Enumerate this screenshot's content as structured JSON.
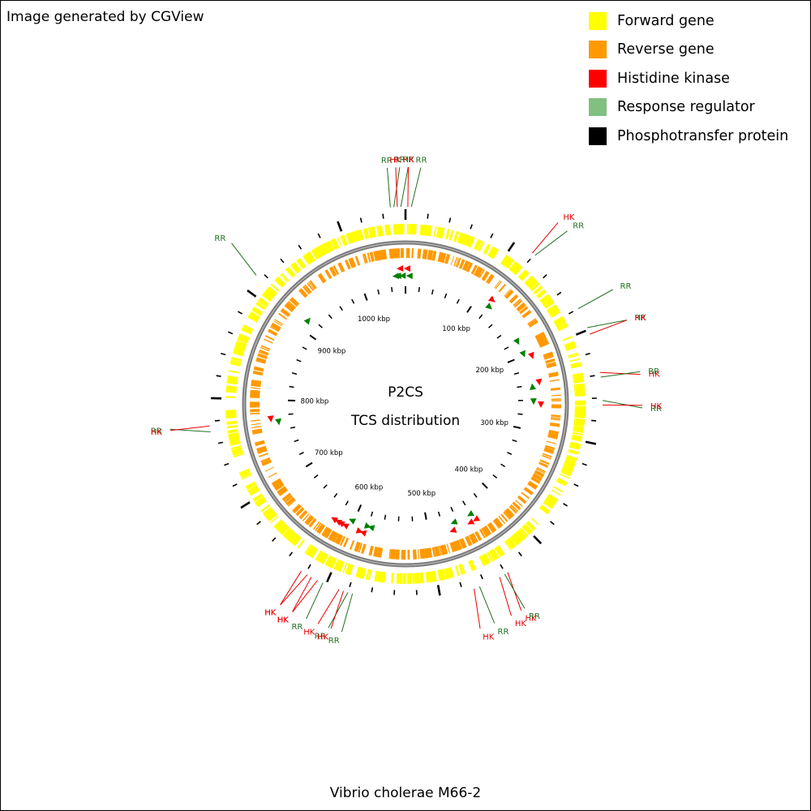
{
  "credit": "Image generated by CGView",
  "title_line1": "P2CS",
  "title_line2": "TCS distribution",
  "genome_name": "Vibrio cholerae M66-2",
  "legend": [
    {
      "label": "Forward gene",
      "color": "#ffff00"
    },
    {
      "label": "Reverse gene",
      "color": "#ff9900"
    },
    {
      "label": "Histidine kinase",
      "color": "#ff0000"
    },
    {
      "label": "Response regulator",
      "color": "#80c080"
    },
    {
      "label": "Phosphotransfer protein",
      "color": "#000000"
    }
  ],
  "colors": {
    "forward": "#ffff00",
    "reverse": "#ff9900",
    "hk": "#ff0000",
    "hk_label": "#e80000",
    "rr_marker": "#008000",
    "rr_label": "#207020",
    "backbone": "#808080",
    "tick": "#000000"
  },
  "genome_length_kbp": 1060,
  "ruler": {
    "tick_labels": [
      {
        "kbp": 100,
        "text": "100 kbp"
      },
      {
        "kbp": 200,
        "text": "200 kbp"
      },
      {
        "kbp": 300,
        "text": "300 kbp"
      },
      {
        "kbp": 400,
        "text": "400 kbp"
      },
      {
        "kbp": 500,
        "text": "500 kbp"
      },
      {
        "kbp": 600,
        "text": "600 kbp"
      },
      {
        "kbp": 700,
        "text": "700 kbp"
      },
      {
        "kbp": 800,
        "text": "800 kbp"
      },
      {
        "kbp": 900,
        "text": "900 kbp"
      },
      {
        "kbp": 1000,
        "text": "1000 kbp"
      }
    ],
    "minor_tick_kbp": 20,
    "major_tick_kbp": 100
  },
  "features": [
    {
      "type": "RR",
      "label": "RR",
      "kbp": 1047,
      "strand": "reverse"
    },
    {
      "type": "RR",
      "label": "RR",
      "kbp": 1050,
      "strand": "reverse"
    },
    {
      "type": "HK",
      "label": "HK",
      "kbp": 1053,
      "strand": "reverse"
    },
    {
      "type": "RR",
      "label": "RR",
      "kbp": 1056,
      "strand": "reverse"
    },
    {
      "type": "HK",
      "label": "HK",
      "kbp": 2,
      "strand": "reverse"
    },
    {
      "type": "RR",
      "label": "RR",
      "kbp": 5,
      "strand": "reverse"
    },
    {
      "type": "HK",
      "label": "HK",
      "kbp": 118,
      "strand": "forward"
    },
    {
      "type": "RR",
      "label": "RR",
      "kbp": 121,
      "strand": "forward"
    },
    {
      "type": "RR",
      "label": "RR",
      "kbp": 180,
      "strand": "forward"
    },
    {
      "type": "RR",
      "label": "RR",
      "kbp": 198,
      "strand": "forward"
    },
    {
      "type": "HK",
      "label": "HK",
      "kbp": 204,
      "strand": "forward"
    },
    {
      "type": "HK",
      "label": "HK",
      "kbp": 238,
      "strand": "forward"
    },
    {
      "type": "RR",
      "label": "RR",
      "kbp": 242,
      "strand": "reverse"
    },
    {
      "type": "RR",
      "label": "RR",
      "kbp": 262,
      "strand": "forward"
    },
    {
      "type": "HK",
      "label": "HK",
      "kbp": 266,
      "strand": "forward"
    },
    {
      "type": "HK",
      "label": "HK",
      "kbp": 438,
      "strand": "forward"
    },
    {
      "type": "RR",
      "label": "RR",
      "kbp": 441,
      "strand": "forward"
    },
    {
      "type": "HK",
      "label": "HK",
      "kbp": 446,
      "strand": "forward"
    },
    {
      "type": "RR",
      "label": "RR",
      "kbp": 465,
      "strand": "forward"
    },
    {
      "type": "HK",
      "label": "HK",
      "kbp": 470,
      "strand": "forward"
    },
    {
      "type": "RR",
      "label": "RR",
      "kbp": 576,
      "strand": "forward"
    },
    {
      "type": "RR",
      "label": "RR",
      "kbp": 580,
      "strand": "reverse"
    },
    {
      "type": "HK",
      "label": "HK",
      "kbp": 584,
      "strand": "forward"
    },
    {
      "type": "HK",
      "label": "HK",
      "kbp": 588,
      "strand": "reverse"
    },
    {
      "type": "RR",
      "label": "RR",
      "kbp": 603,
      "strand": "forward"
    },
    {
      "type": "HK",
      "label": "HK",
      "kbp": 608,
      "strand": "forward"
    },
    {
      "type": "HK",
      "label": "HK",
      "kbp": 614,
      "strand": "forward"
    },
    {
      "type": "HK",
      "label": "HK",
      "kbp": 618,
      "strand": "forward"
    },
    {
      "type": "HK",
      "label": "HK",
      "kbp": 624,
      "strand": "forward"
    },
    {
      "type": "RR",
      "label": "RR",
      "kbp": 771,
      "strand": "reverse"
    },
    {
      "type": "HK",
      "label": "HK",
      "kbp": 776,
      "strand": "reverse"
    },
    {
      "type": "RR",
      "label": "RR",
      "kbp": 915,
      "strand": "forward"
    }
  ]
}
